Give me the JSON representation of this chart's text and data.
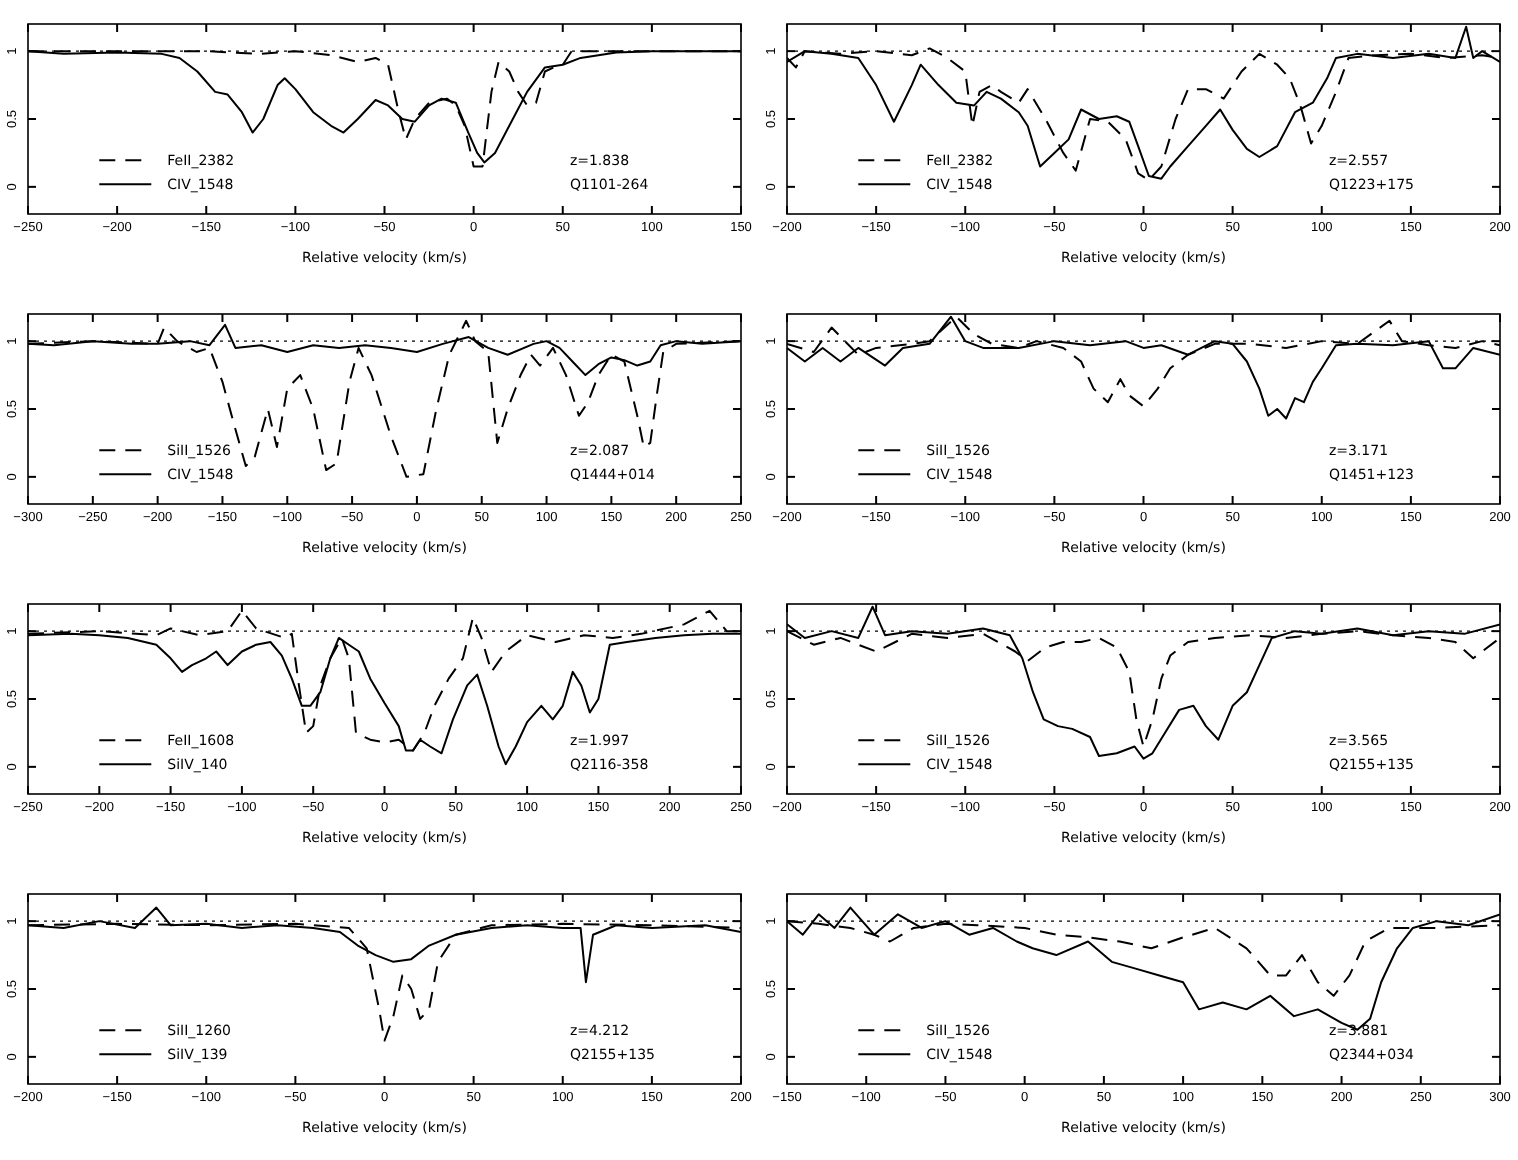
{
  "chart_data": [
    {
      "type": "line",
      "xlabel": "Relative velocity (km/s)",
      "xlim": [
        -250,
        150
      ],
      "xticks": [
        -250,
        -200,
        -150,
        -100,
        -50,
        0,
        50,
        100,
        150
      ],
      "ylim": [
        -0.2,
        1.2
      ],
      "yticks": [
        0,
        0.5,
        1
      ],
      "legend": "bottom left",
      "annotations": [
        "z=1.838",
        "Q1101-264"
      ],
      "ref_lines": [
        {
          "axis": "y",
          "value": 1,
          "line_style": "dotted"
        }
      ],
      "series": [
        {
          "name": "FeII_2382",
          "color": "#000000",
          "line_style": "dashed",
          "x": [
            -250,
            -200,
            -150,
            -120,
            -100,
            -80,
            -65,
            -55,
            -48,
            -42,
            -38,
            -33,
            -25,
            -15,
            -10,
            -5,
            0,
            5,
            10,
            14,
            20,
            25,
            30,
            35,
            40,
            45,
            50,
            55,
            100,
            150
          ],
          "values": [
            1,
            1,
            1,
            0.98,
            1,
            0.97,
            0.92,
            0.95,
            0.9,
            0.55,
            0.35,
            0.5,
            0.62,
            0.65,
            0.6,
            0.45,
            0.15,
            0.15,
            0.7,
            0.92,
            0.85,
            0.7,
            0.6,
            0.62,
            0.85,
            0.88,
            0.9,
            1,
            1,
            1
          ]
        },
        {
          "name": "CIV_1548",
          "color": "#000000",
          "line_style": "solid",
          "x": [
            -250,
            -230,
            -200,
            -175,
            -165,
            -155,
            -145,
            -138,
            -130,
            -124,
            -118,
            -110,
            -106,
            -100,
            -90,
            -80,
            -73,
            -65,
            -55,
            -48,
            -40,
            -33,
            -25,
            -18,
            -10,
            -3,
            2,
            6,
            12,
            20,
            30,
            40,
            50,
            60,
            80,
            100,
            150
          ],
          "values": [
            1,
            0.98,
            0.99,
            0.98,
            0.95,
            0.85,
            0.7,
            0.68,
            0.55,
            0.4,
            0.5,
            0.75,
            0.8,
            0.72,
            0.55,
            0.45,
            0.4,
            0.5,
            0.64,
            0.6,
            0.5,
            0.48,
            0.6,
            0.65,
            0.62,
            0.4,
            0.25,
            0.18,
            0.25,
            0.45,
            0.7,
            0.88,
            0.9,
            0.95,
            0.99,
            1,
            1
          ]
        }
      ]
    },
    {
      "type": "line",
      "xlabel": "Relative velocity (km/s)",
      "xlim": [
        -200,
        200
      ],
      "xticks": [
        -200,
        -150,
        -100,
        -50,
        0,
        50,
        100,
        150,
        200
      ],
      "ylim": [
        -0.2,
        1.2
      ],
      "yticks": [
        0,
        0.5,
        1
      ],
      "legend": "bottom left",
      "annotations": [
        "z=2.557",
        "Q1223+175"
      ],
      "ref_lines": [
        {
          "axis": "y",
          "value": 1,
          "line_style": "dotted"
        }
      ],
      "series": [
        {
          "name": "FeII_2382",
          "color": "#000000",
          "line_style": "dashed",
          "x": [
            -200,
            -195,
            -190,
            -170,
            -150,
            -130,
            -120,
            -110,
            -100,
            -96,
            -92,
            -85,
            -80,
            -70,
            -65,
            -55,
            -45,
            -38,
            -30,
            -20,
            -10,
            -3,
            3,
            10,
            18,
            25,
            35,
            45,
            55,
            65,
            75,
            82,
            88,
            94,
            100,
            108,
            115,
            130,
            150,
            170,
            190,
            200
          ],
          "values": [
            0.95,
            0.88,
            1,
            0.98,
            1,
            0.97,
            1.02,
            0.95,
            0.85,
            0.45,
            0.7,
            0.75,
            0.7,
            0.62,
            0.72,
            0.5,
            0.25,
            0.12,
            0.5,
            0.48,
            0.35,
            0.1,
            0.05,
            0.15,
            0.5,
            0.72,
            0.72,
            0.65,
            0.85,
            0.98,
            0.9,
            0.8,
            0.6,
            0.32,
            0.45,
            0.7,
            0.95,
            0.97,
            0.98,
            0.95,
            0.97,
            0.95
          ]
        },
        {
          "name": "CIV_1548",
          "color": "#000000",
          "line_style": "solid",
          "x": [
            -200,
            -190,
            -175,
            -160,
            -150,
            -140,
            -130,
            -125,
            -115,
            -105,
            -95,
            -88,
            -80,
            -70,
            -65,
            -58,
            -50,
            -42,
            -35,
            -25,
            -15,
            -8,
            -3,
            3,
            10,
            15,
            25,
            35,
            43,
            50,
            58,
            65,
            75,
            85,
            95,
            103,
            108,
            120,
            140,
            160,
            175,
            181,
            185,
            190,
            200
          ],
          "values": [
            0.92,
            1,
            0.98,
            0.95,
            0.75,
            0.48,
            0.75,
            0.9,
            0.75,
            0.62,
            0.6,
            0.7,
            0.65,
            0.55,
            0.45,
            0.15,
            0.25,
            0.35,
            0.57,
            0.5,
            0.52,
            0.48,
            0.3,
            0.08,
            0.06,
            0.15,
            0.3,
            0.45,
            0.57,
            0.42,
            0.28,
            0.22,
            0.3,
            0.55,
            0.62,
            0.8,
            0.95,
            0.98,
            0.95,
            0.98,
            0.95,
            1.18,
            0.95,
            1,
            0.92
          ]
        }
      ]
    },
    {
      "type": "line",
      "xlabel": "Relative velocity (km/s)",
      "xlim": [
        -300,
        250
      ],
      "xticks": [
        -300,
        -250,
        -200,
        -150,
        -100,
        -50,
        0,
        50,
        100,
        150,
        200,
        250
      ],
      "ylim": [
        -0.2,
        1.2
      ],
      "yticks": [
        0,
        0.5,
        1
      ],
      "legend": "bottom left",
      "annotations": [
        "z=2.087",
        "Q1444+014"
      ],
      "ref_lines": [
        {
          "axis": "y",
          "value": 1,
          "line_style": "dotted"
        }
      ],
      "series": [
        {
          "name": "SiII_1526",
          "color": "#000000",
          "line_style": "dashed",
          "x": [
            -300,
            -250,
            -200,
            -195,
            -185,
            -170,
            -160,
            -150,
            -140,
            -132,
            -125,
            -115,
            -108,
            -100,
            -90,
            -80,
            -70,
            -62,
            -52,
            -45,
            -35,
            -20,
            -8,
            5,
            15,
            25,
            38,
            45,
            55,
            62,
            70,
            80,
            88,
            95,
            105,
            115,
            125,
            132,
            140,
            150,
            160,
            170,
            175,
            180,
            185,
            190,
            200,
            250
          ],
          "values": [
            0.98,
            1,
            0.98,
            1.1,
            1,
            0.92,
            0.95,
            0.7,
            0.35,
            0.08,
            0.15,
            0.5,
            0.22,
            0.65,
            0.75,
            0.5,
            0.05,
            0.1,
            0.7,
            0.95,
            0.75,
            0.3,
            0,
            0.02,
            0.5,
            0.9,
            1.15,
            1,
            0.92,
            0.25,
            0.5,
            0.75,
            0.9,
            0.82,
            0.95,
            0.75,
            0.45,
            0.55,
            0.75,
            0.9,
            0.85,
            0.45,
            0.22,
            0.25,
            0.6,
            0.92,
            0.98,
            1
          ]
        },
        {
          "name": "CIV_1548",
          "color": "#000000",
          "line_style": "solid",
          "x": [
            -300,
            -280,
            -250,
            -220,
            -200,
            -175,
            -160,
            -148,
            -140,
            -120,
            -100,
            -80,
            -60,
            -40,
            -20,
            0,
            20,
            40,
            55,
            70,
            90,
            100,
            110,
            120,
            130,
            140,
            150,
            160,
            170,
            180,
            188,
            200,
            220,
            250
          ],
          "values": [
            0.98,
            0.97,
            1,
            0.98,
            0.98,
            1,
            0.97,
            1.12,
            0.95,
            0.97,
            0.92,
            0.97,
            0.95,
            0.97,
            0.95,
            0.92,
            0.98,
            1.03,
            0.95,
            0.9,
            0.98,
            1,
            0.95,
            0.85,
            0.75,
            0.83,
            0.88,
            0.86,
            0.82,
            0.85,
            0.97,
            1,
            0.98,
            1
          ]
        }
      ]
    },
    {
      "type": "line",
      "xlabel": "Relative velocity (km/s)",
      "xlim": [
        -200,
        200
      ],
      "xticks": [
        -200,
        -150,
        -100,
        -50,
        0,
        50,
        100,
        150,
        200
      ],
      "ylim": [
        -0.2,
        1.2
      ],
      "yticks": [
        0,
        0.5,
        1
      ],
      "legend": "bottom left",
      "annotations": [
        "z=3.171",
        "Q1451+123"
      ],
      "ref_lines": [
        {
          "axis": "y",
          "value": 1,
          "line_style": "dotted"
        }
      ],
      "series": [
        {
          "name": "SiII_1526",
          "color": "#000000",
          "line_style": "dashed",
          "x": [
            -200,
            -185,
            -175,
            -160,
            -150,
            -130,
            -120,
            -105,
            -95,
            -85,
            -70,
            -60,
            -45,
            -35,
            -28,
            -20,
            -13,
            -8,
            0,
            8,
            15,
            25,
            40,
            60,
            80,
            100,
            120,
            138,
            145,
            160,
            175,
            190,
            200
          ],
          "values": [
            0.98,
            0.92,
            1.1,
            0.9,
            0.95,
            0.98,
            1,
            1.18,
            1.05,
            0.98,
            0.95,
            1,
            0.95,
            0.85,
            0.65,
            0.55,
            0.72,
            0.6,
            0.52,
            0.65,
            0.8,
            0.9,
            0.98,
            0.98,
            0.95,
            1,
            0.98,
            1.15,
            1,
            0.97,
            0.95,
            1,
            0.97
          ]
        },
        {
          "name": "CIV_1548",
          "color": "#000000",
          "line_style": "solid",
          "x": [
            -200,
            -190,
            -180,
            -170,
            -160,
            -145,
            -135,
            -120,
            -108,
            -100,
            -90,
            -70,
            -50,
            -30,
            -10,
            0,
            10,
            25,
            40,
            50,
            58,
            65,
            70,
            75,
            80,
            85,
            90,
            95,
            100,
            108,
            120,
            140,
            160,
            168,
            175,
            185,
            200
          ],
          "values": [
            0.95,
            0.85,
            0.95,
            0.85,
            0.95,
            0.82,
            0.95,
            0.98,
            1.18,
            1,
            0.95,
            0.95,
            1,
            0.97,
            1,
            0.95,
            0.97,
            0.9,
            1,
            0.98,
            0.85,
            0.65,
            0.45,
            0.5,
            0.43,
            0.58,
            0.55,
            0.7,
            0.8,
            0.97,
            0.98,
            0.97,
            1,
            0.8,
            0.8,
            0.95,
            0.9
          ]
        }
      ]
    },
    {
      "type": "line",
      "xlabel": "Relative velocity (km/s)",
      "xlim": [
        -250,
        250
      ],
      "xticks": [
        -250,
        -200,
        -150,
        -100,
        -50,
        0,
        50,
        100,
        150,
        200,
        250
      ],
      "ylim": [
        -0.2,
        1.2
      ],
      "yticks": [
        0,
        0.5,
        1
      ],
      "legend": "bottom left",
      "annotations": [
        "z=1.997",
        "Q2116-358"
      ],
      "ref_lines": [
        {
          "axis": "y",
          "value": 1,
          "line_style": "dotted"
        }
      ],
      "series": [
        {
          "name": "FeII_1608",
          "color": "#000000",
          "line_style": "dashed",
          "x": [
            -250,
            -200,
            -160,
            -150,
            -130,
            -110,
            -100,
            -90,
            -70,
            -65,
            -60,
            -55,
            -50,
            -45,
            -38,
            -30,
            -25,
            -20,
            -10,
            0,
            10,
            20,
            28,
            35,
            45,
            55,
            62,
            68,
            75,
            85,
            100,
            120,
            140,
            160,
            180,
            210,
            228,
            240,
            250
          ],
          "values": [
            0.98,
            1,
            0.97,
            1.02,
            0.97,
            1,
            1.15,
            1.02,
            0.95,
            0.98,
            0.6,
            0.25,
            0.3,
            0.6,
            0.8,
            0.95,
            0.8,
            0.25,
            0.2,
            0.18,
            0.2,
            0.12,
            0.25,
            0.45,
            0.65,
            0.8,
            1.1,
            0.95,
            0.7,
            0.85,
            0.97,
            0.92,
            0.97,
            0.95,
            0.98,
            1.05,
            1.15,
            1,
            1
          ]
        },
        {
          "name": "SiIV_140",
          "color": "#000000",
          "line_style": "solid",
          "x": [
            -250,
            -220,
            -200,
            -180,
            -160,
            -150,
            -142,
            -135,
            -125,
            -118,
            -110,
            -100,
            -90,
            -80,
            -72,
            -65,
            -58,
            -52,
            -45,
            -38,
            -32,
            -25,
            -18,
            -10,
            0,
            10,
            15,
            20,
            25,
            32,
            40,
            48,
            58,
            65,
            72,
            80,
            85,
            92,
            100,
            110,
            118,
            125,
            132,
            138,
            144,
            150,
            158,
            170,
            190,
            210,
            230,
            250
          ],
          "values": [
            0.97,
            0.98,
            0.97,
            0.95,
            0.9,
            0.8,
            0.7,
            0.75,
            0.8,
            0.85,
            0.75,
            0.85,
            0.9,
            0.92,
            0.82,
            0.65,
            0.45,
            0.45,
            0.55,
            0.8,
            0.95,
            0.9,
            0.85,
            0.65,
            0.47,
            0.3,
            0.12,
            0.12,
            0.2,
            0.15,
            0.1,
            0.35,
            0.6,
            0.68,
            0.45,
            0.15,
            0.02,
            0.15,
            0.33,
            0.45,
            0.35,
            0.45,
            0.7,
            0.6,
            0.4,
            0.5,
            0.9,
            0.92,
            0.95,
            0.97,
            0.98,
            0.98
          ]
        }
      ]
    },
    {
      "type": "line",
      "xlabel": "Relative velocity (km/s)",
      "xlim": [
        -200,
        200
      ],
      "xticks": [
        -200,
        -150,
        -100,
        -50,
        0,
        50,
        100,
        150,
        200
      ],
      "ylim": [
        -0.2,
        1.2
      ],
      "yticks": [
        0,
        0.5,
        1
      ],
      "legend": "bottom left",
      "annotations": [
        "z=3.565",
        "Q2155+135"
      ],
      "ref_lines": [
        {
          "axis": "y",
          "value": 1,
          "line_style": "dotted"
        }
      ],
      "series": [
        {
          "name": "SiII_1526",
          "color": "#000000",
          "line_style": "dashed",
          "x": [
            -200,
            -185,
            -170,
            -150,
            -130,
            -110,
            -90,
            -72,
            -65,
            -55,
            -45,
            -35,
            -25,
            -15,
            -8,
            -4,
            0,
            5,
            10,
            15,
            25,
            40,
            60,
            80,
            100,
            120,
            140,
            160,
            175,
            185,
            200
          ],
          "values": [
            1,
            0.9,
            0.95,
            0.85,
            0.98,
            0.95,
            0.98,
            0.85,
            0.78,
            0.88,
            0.92,
            0.92,
            0.95,
            0.88,
            0.7,
            0.35,
            0.15,
            0.35,
            0.65,
            0.82,
            0.92,
            0.95,
            0.97,
            0.95,
            0.98,
            1,
            0.97,
            0.95,
            0.92,
            0.8,
            0.95
          ]
        },
        {
          "name": "CIV_1548",
          "color": "#000000",
          "line_style": "solid",
          "x": [
            -200,
            -190,
            -175,
            -160,
            -152,
            -145,
            -130,
            -110,
            -90,
            -75,
            -68,
            -62,
            -56,
            -48,
            -40,
            -30,
            -25,
            -15,
            -5,
            0,
            5,
            12,
            20,
            28,
            35,
            42,
            50,
            58,
            65,
            72,
            85,
            100,
            120,
            140,
            160,
            180,
            200
          ],
          "values": [
            1.05,
            0.95,
            1,
            0.95,
            1.18,
            0.97,
            1,
            0.98,
            1.02,
            0.97,
            0.8,
            0.55,
            0.35,
            0.3,
            0.28,
            0.22,
            0.08,
            0.1,
            0.15,
            0.06,
            0.1,
            0.25,
            0.42,
            0.45,
            0.3,
            0.2,
            0.45,
            0.55,
            0.75,
            0.95,
            1,
            0.98,
            1.02,
            0.97,
            1,
            0.98,
            1.05
          ]
        }
      ]
    },
    {
      "type": "line",
      "xlabel": "Relative velocity (km/s)",
      "xlim": [
        -200,
        200
      ],
      "xticks": [
        -200,
        -150,
        -100,
        -50,
        0,
        50,
        100,
        150,
        200
      ],
      "ylim": [
        -0.2,
        1.2
      ],
      "yticks": [
        0,
        0.5,
        1
      ],
      "legend": "bottom left",
      "annotations": [
        "z=4.212",
        "Q2155+135"
      ],
      "ref_lines": [
        {
          "axis": "y",
          "value": 1,
          "line_style": "dotted"
        }
      ],
      "series": [
        {
          "name": "SiII_1260",
          "color": "#000000",
          "line_style": "dashed",
          "x": [
            -200,
            -150,
            -100,
            -50,
            -20,
            -10,
            -3,
            0,
            5,
            10,
            15,
            20,
            25,
            30,
            40,
            60,
            100,
            150,
            200
          ],
          "values": [
            0.97,
            0.98,
            0.97,
            0.98,
            0.95,
            0.8,
            0.35,
            0.12,
            0.3,
            0.6,
            0.5,
            0.28,
            0.35,
            0.7,
            0.9,
            0.97,
            0.98,
            0.97,
            0.95
          ]
        },
        {
          "name": "SiIV_139",
          "color": "#000000",
          "line_style": "solid",
          "x": [
            -200,
            -180,
            -160,
            -140,
            -128,
            -120,
            -100,
            -80,
            -60,
            -40,
            -25,
            -15,
            -5,
            5,
            15,
            25,
            40,
            60,
            80,
            100,
            110,
            113,
            117,
            130,
            150,
            180,
            200
          ],
          "values": [
            0.97,
            0.95,
            1,
            0.95,
            1.1,
            0.97,
            0.98,
            0.95,
            0.97,
            0.95,
            0.92,
            0.82,
            0.75,
            0.7,
            0.72,
            0.82,
            0.9,
            0.95,
            0.97,
            0.95,
            0.95,
            0.55,
            0.9,
            0.97,
            0.95,
            0.97,
            0.92
          ]
        }
      ]
    },
    {
      "type": "line",
      "xlabel": "Relative velocity (km/s)",
      "xlim": [
        -150,
        300
      ],
      "xticks": [
        -150,
        -100,
        -50,
        0,
        50,
        100,
        150,
        200,
        250,
        300
      ],
      "ylim": [
        -0.2,
        1.2
      ],
      "yticks": [
        0,
        0.5,
        1
      ],
      "legend": "bottom left",
      "annotations": [
        "z=3.881",
        "Q2344+034"
      ],
      "ref_lines": [
        {
          "axis": "y",
          "value": 1,
          "line_style": "dotted"
        }
      ],
      "series": [
        {
          "name": "SiII_1526",
          "color": "#000000",
          "line_style": "dashed",
          "x": [
            -150,
            -130,
            -110,
            -95,
            -85,
            -70,
            -50,
            -30,
            0,
            20,
            40,
            60,
            80,
            100,
            120,
            140,
            155,
            165,
            175,
            185,
            195,
            205,
            215,
            230,
            260,
            300
          ],
          "values": [
            1,
            0.98,
            0.95,
            0.9,
            0.85,
            0.95,
            0.98,
            0.97,
            0.95,
            0.9,
            0.88,
            0.85,
            0.8,
            0.88,
            0.95,
            0.8,
            0.6,
            0.6,
            0.75,
            0.55,
            0.45,
            0.6,
            0.85,
            0.95,
            0.95,
            0.97
          ]
        },
        {
          "name": "CIV_1548",
          "color": "#000000",
          "line_style": "solid",
          "x": [
            -150,
            -140,
            -130,
            -120,
            -110,
            -95,
            -80,
            -65,
            -50,
            -35,
            -20,
            -5,
            5,
            20,
            40,
            55,
            70,
            85,
            100,
            110,
            125,
            140,
            155,
            170,
            185,
            200,
            210,
            218,
            225,
            235,
            245,
            260,
            280,
            300
          ],
          "values": [
            1,
            0.9,
            1.05,
            0.95,
            1.1,
            0.9,
            1.05,
            0.95,
            1,
            0.9,
            0.95,
            0.85,
            0.8,
            0.75,
            0.85,
            0.7,
            0.65,
            0.6,
            0.55,
            0.35,
            0.4,
            0.35,
            0.45,
            0.3,
            0.35,
            0.25,
            0.2,
            0.28,
            0.55,
            0.8,
            0.95,
            1,
            0.97,
            1.05
          ]
        }
      ]
    }
  ]
}
